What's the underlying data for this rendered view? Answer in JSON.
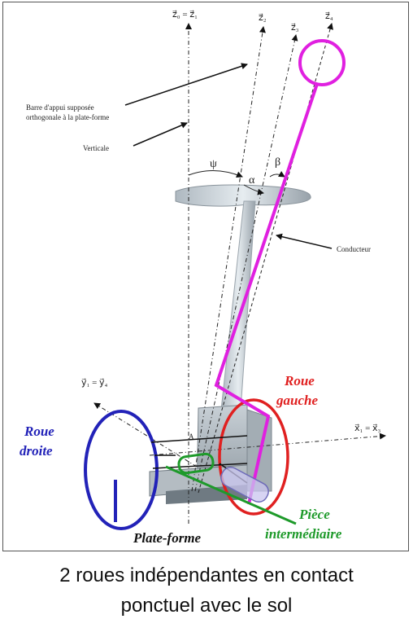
{
  "axes": {
    "z0": "z⃗₀ = z⃗₁",
    "z2": "z⃗₂",
    "z3": "z⃗₃",
    "z4": "z⃗₄",
    "x1": "x⃗₁ = x⃗₃",
    "y1": "y⃗₁ = y⃗₄"
  },
  "angles": {
    "psi": "ψ",
    "alpha": "α",
    "beta": "β"
  },
  "annotations": {
    "barre_line1": "Barre d'appui supposée",
    "barre_line2": "orthogonale à la plate-forme",
    "verticale": "Verticale",
    "conducteur": "Conducteur",
    "point_a": "A"
  },
  "labels": {
    "roue_gauche_1": "Roue",
    "roue_gauche_2": "gauche",
    "roue_droite_1": "Roue",
    "roue_droite_2": "droite",
    "plate_forme": "Plate-forme",
    "piece_1": "Pièce",
    "piece_2": "intermédiaire"
  },
  "colors": {
    "conducteur": "#e020e0",
    "roue_gauche": "#e02020",
    "roue_droite": "#2222b8",
    "piece": "#1e9a2a"
  },
  "caption": {
    "line1": "2 roues indépendantes en contact",
    "line2": "ponctuel avec le sol"
  }
}
